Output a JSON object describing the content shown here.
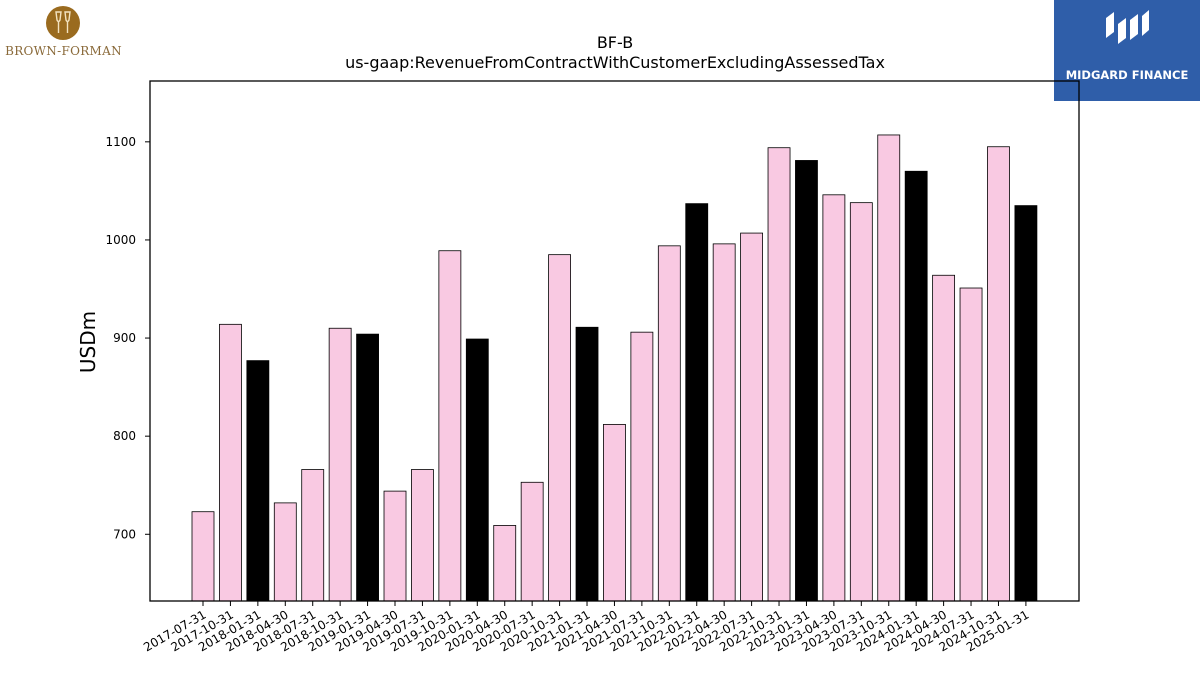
{
  "logos": {
    "left": {
      "name": "BROWN-FORMAN",
      "color": "#8a6a3a"
    },
    "right": {
      "name": "MIDGARD FINANCE",
      "background": "#2f5ea9"
    }
  },
  "chart_data": {
    "type": "bar",
    "title": "BF-B",
    "subtitle": "us-gaap:RevenueFromContractWithCustomerExcludingAssessedTax",
    "xlabel": "",
    "ylabel": "USDm",
    "ylim": [
      632,
      1162
    ],
    "yticks": [
      700,
      800,
      900,
      1000,
      1100
    ],
    "grid": false,
    "legend": "none",
    "colors": {
      "quarter": "#f9c9e2",
      "fiscal_q3": "#000000",
      "edge": "#000000"
    },
    "categories": [
      "2017-07-31",
      "2017-10-31",
      "2018-01-31",
      "2018-04-30",
      "2018-07-31",
      "2018-10-31",
      "2019-01-31",
      "2019-04-30",
      "2019-07-31",
      "2019-10-31",
      "2020-01-31",
      "2020-04-30",
      "2020-07-31",
      "2020-10-31",
      "2021-01-31",
      "2021-04-30",
      "2021-07-31",
      "2021-10-31",
      "2022-01-31",
      "2022-04-30",
      "2022-07-31",
      "2022-10-31",
      "2023-01-31",
      "2023-04-30",
      "2023-07-31",
      "2023-10-31",
      "2024-01-31",
      "2024-04-30",
      "2024-07-31",
      "2024-10-31",
      "2025-01-31"
    ],
    "values": [
      723,
      914,
      877,
      732,
      766,
      910,
      904,
      744,
      766,
      989,
      899,
      709,
      753,
      985,
      911,
      812,
      906,
      994,
      1037,
      996,
      1007,
      1094,
      1081,
      1046,
      1038,
      1107,
      1070,
      964,
      951,
      1095,
      1035
    ],
    "highlight": [
      false,
      false,
      true,
      false,
      false,
      false,
      true,
      false,
      false,
      false,
      true,
      false,
      false,
      false,
      true,
      false,
      false,
      false,
      true,
      false,
      false,
      false,
      true,
      false,
      false,
      false,
      true,
      false,
      false,
      false,
      true
    ]
  }
}
